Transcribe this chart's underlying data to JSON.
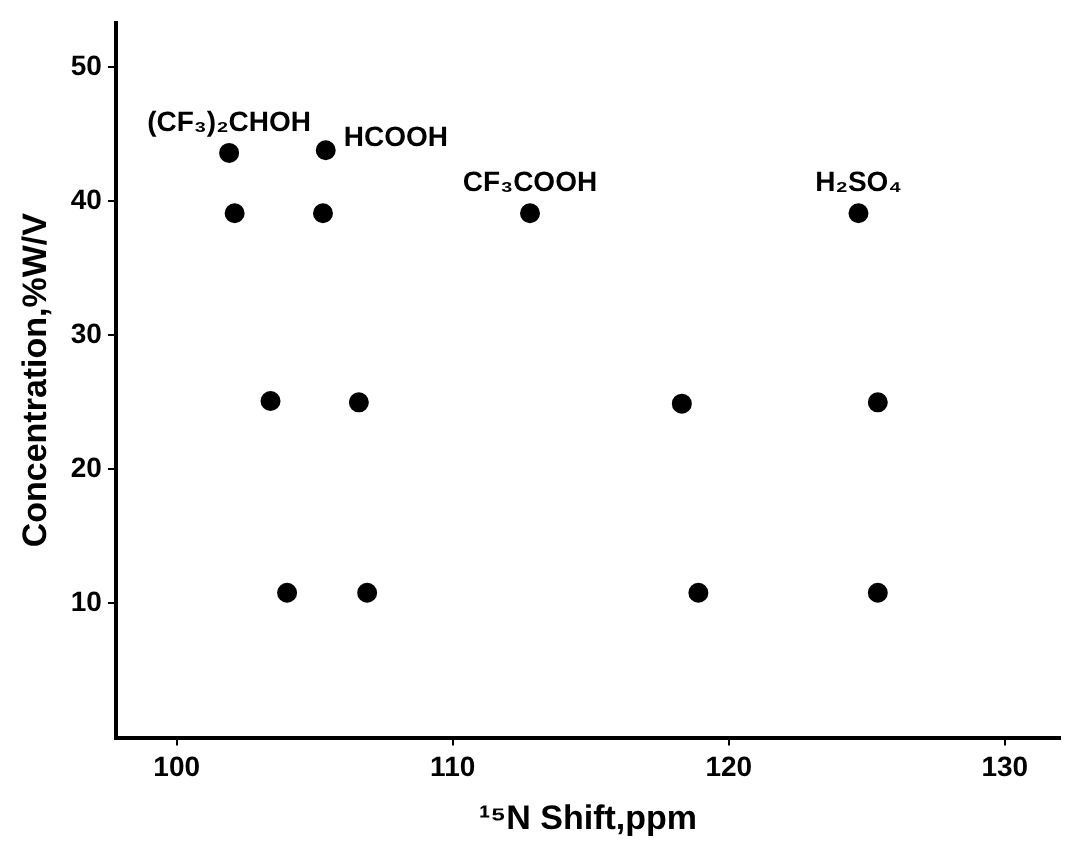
{
  "chart_data": {
    "type": "scatter",
    "xlabel": "¹⁵N Shift,ppm",
    "ylabel": "Concentration,%W/V",
    "xlim": [
      97.8,
      132
    ],
    "xticks": [
      100,
      110,
      120,
      130
    ],
    "ylim": [
      0,
      53.3
    ],
    "yticks": [
      10,
      20,
      30,
      40,
      50
    ],
    "grid": false,
    "legend": false,
    "marker": "circle",
    "series": [
      {
        "name": "(CF₃)₂CHOH",
        "color": "#000000",
        "x": [
          101.9,
          102.1,
          103.4,
          104.0
        ],
        "values": [
          43.6,
          39.1,
          25.1,
          10.8
        ]
      },
      {
        "name": "HCOOH",
        "color": "#000000",
        "x": [
          105.4,
          105.3,
          106.6,
          106.9
        ],
        "values": [
          43.8,
          39.1,
          25.0,
          10.8
        ]
      },
      {
        "name": "CF₃COOH",
        "color": "#000000",
        "x": [
          112.8,
          118.3,
          118.9
        ],
        "values": [
          39.1,
          24.9,
          10.8
        ]
      },
      {
        "name": "H₂SO₄",
        "color": "#000000",
        "x": [
          124.7,
          125.4,
          125.4
        ],
        "values": [
          39.1,
          25.0,
          10.8
        ]
      }
    ]
  }
}
